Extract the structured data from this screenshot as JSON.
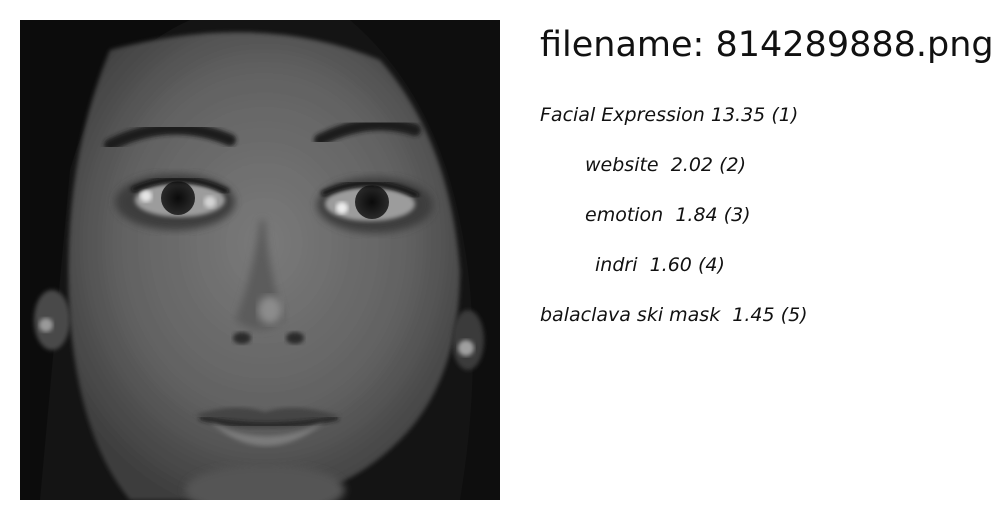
{
  "filename_label": "filename: 814289888.png",
  "predictions": [
    {
      "label": "Facial Expression",
      "score": "13.35",
      "rank": "(1)"
    },
    {
      "label": "website",
      "score": "2.02",
      "rank": "(2)"
    },
    {
      "label": "emotion",
      "score": "1.84",
      "rank": "(3)"
    },
    {
      "label": "indri",
      "score": "1.60",
      "rank": "(4)"
    },
    {
      "label": "balaclava ski mask",
      "score": "1.45",
      "rank": "(5)"
    }
  ],
  "image": {
    "subject": "grayscale close-up photograph of a woman's face",
    "background_color": "#141414",
    "skin_color": "#6b6b6b"
  }
}
